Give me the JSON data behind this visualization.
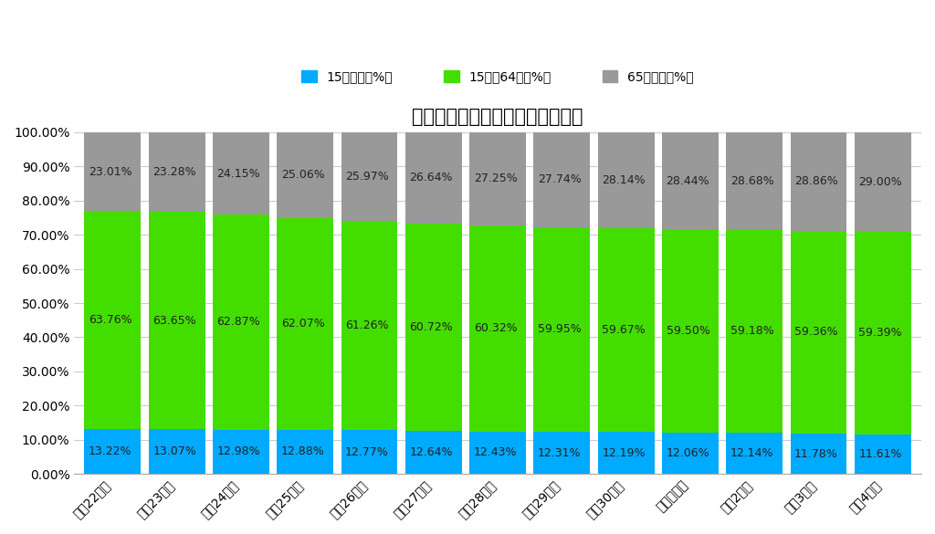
{
  "categories": [
    "平成22年度",
    "平成23年度",
    "平成24年度",
    "平成25年度",
    "平成26年度",
    "平成27年度",
    "平成28年度",
    "平成29年度",
    "平成30年度",
    "令和元年度",
    "令和2年度",
    "令和3年度",
    "令和4年度"
  ],
  "under15": [
    13.22,
    13.07,
    12.98,
    12.88,
    12.77,
    12.64,
    12.43,
    12.31,
    12.19,
    12.06,
    12.14,
    11.78,
    11.61
  ],
  "working": [
    63.76,
    63.65,
    62.87,
    62.07,
    61.26,
    60.72,
    60.32,
    59.95,
    59.67,
    59.5,
    59.18,
    59.36,
    59.39
  ],
  "senior": [
    23.01,
    23.28,
    24.15,
    25.06,
    25.97,
    26.64,
    27.25,
    27.74,
    28.14,
    28.44,
    28.68,
    28.86,
    29.0
  ],
  "color_under15": "#00aaff",
  "color_working": "#44dd00",
  "color_senior": "#999999",
  "title": "日本の人口の年齢層別割合の推移",
  "legend_under15": "15歳未満（%）",
  "legend_working": "15歳～64歳（%）",
  "legend_senior": "65歳以上（%）",
  "background_color": "#ffffff",
  "title_fontsize": 15,
  "tick_fontsize": 10,
  "label_fontsize": 9,
  "bar_width": 0.88
}
